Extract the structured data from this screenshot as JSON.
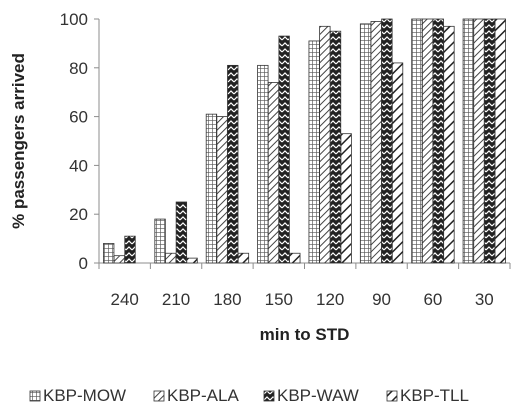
{
  "chart_data": {
    "type": "bar",
    "title": "",
    "xlabel": "min to STD",
    "ylabel": "% passengers arrived",
    "categories": [
      "240",
      "210",
      "180",
      "150",
      "120",
      "90",
      "60",
      "30"
    ],
    "ylim": [
      0,
      100
    ],
    "yticks": [
      "0",
      "20",
      "40",
      "60",
      "80",
      "100"
    ],
    "grid": false,
    "legend_position": "bottom",
    "series": [
      {
        "name": "KBP-MOW",
        "pattern": "grid",
        "values": [
          8,
          18,
          61,
          81,
          91,
          98,
          100,
          100
        ]
      },
      {
        "name": "KBP-ALA",
        "pattern": "diagonal",
        "values": [
          3,
          4,
          60,
          74,
          97,
          99,
          100,
          100
        ]
      },
      {
        "name": "KBP-WAW",
        "pattern": "chevron",
        "values": [
          11,
          25,
          81,
          93,
          95,
          100,
          100,
          100
        ]
      },
      {
        "name": "KBP-TLL",
        "pattern": "wide-diagonal",
        "values": [
          0,
          2,
          4,
          4,
          53,
          82,
          97,
          100
        ]
      }
    ]
  }
}
